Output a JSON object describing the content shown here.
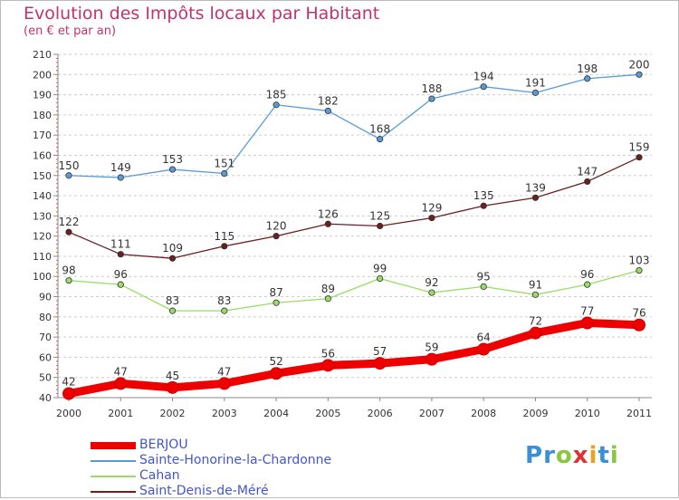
{
  "header": {
    "title": "Evolution des Impôts locaux par Habitant",
    "subtitle": "(en € et par an)"
  },
  "logo": {
    "text": "Proxiti",
    "letters": [
      "P",
      "r",
      "o",
      "x",
      "i",
      "t",
      "i"
    ],
    "colors": [
      "#3a8fd6",
      "#3a8fd6",
      "#8cc63f",
      "#e03030",
      "#f0a020",
      "#3a8fd6",
      "#8cc63f"
    ]
  },
  "chart_data": {
    "type": "line",
    "title": "Evolution des Impôts locaux par Habitant",
    "subtitle": "(en € et par an)",
    "xlabel": "",
    "ylabel": "",
    "x": [
      "2000",
      "2001",
      "2002",
      "2003",
      "2004",
      "2005",
      "2006",
      "2007",
      "2008",
      "2009",
      "2010",
      "2011"
    ],
    "ylim": [
      40,
      210
    ],
    "yticks": [
      40,
      50,
      60,
      70,
      80,
      90,
      100,
      110,
      120,
      130,
      140,
      150,
      160,
      170,
      180,
      190,
      200,
      210
    ],
    "grid": "horizontal dashed",
    "legend_position": "bottom-left",
    "series": [
      {
        "name": "BERJOU",
        "color": "#ee0000",
        "emphasis": true,
        "values": [
          42,
          47,
          45,
          47,
          52,
          56,
          57,
          59,
          64,
          72,
          77,
          76
        ]
      },
      {
        "name": "Sainte-Honorine-la-Chardonne",
        "color": "#5b9bd5",
        "emphasis": false,
        "values": [
          150,
          149,
          153,
          151,
          185,
          182,
          168,
          188,
          194,
          191,
          198,
          200
        ]
      },
      {
        "name": "Cahan",
        "color": "#99dd66",
        "emphasis": false,
        "values": [
          98,
          96,
          83,
          83,
          87,
          89,
          99,
          92,
          95,
          91,
          96,
          103
        ]
      },
      {
        "name": "Saint-Denis-de-Méré",
        "color": "#6b1f1f",
        "emphasis": false,
        "values": [
          122,
          111,
          109,
          115,
          120,
          126,
          125,
          129,
          135,
          139,
          147,
          159
        ]
      }
    ]
  }
}
